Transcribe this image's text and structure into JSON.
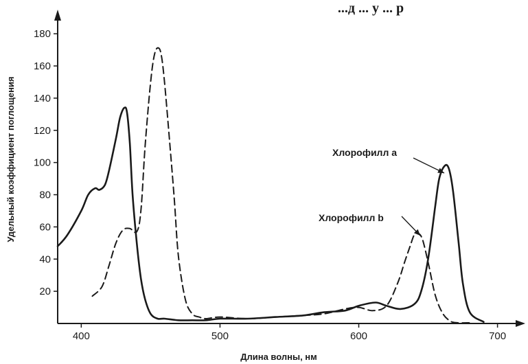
{
  "chart_data": {
    "type": "line",
    "title": "...д ... у ... р",
    "xlabel": "Длина волны, нм",
    "ylabel": "Удельный коэффициент поглощения",
    "xlim": [
      383,
      720
    ],
    "ylim": [
      0,
      195
    ],
    "x_ticks": [
      400,
      500,
      600,
      700
    ],
    "y_ticks": [
      20,
      40,
      60,
      80,
      100,
      120,
      140,
      160,
      180
    ],
    "grid": false,
    "legend": "none",
    "colors": {
      "line": "#1a1a1a"
    },
    "series": [
      {
        "name": "Хлорофилл a",
        "style": "solid",
        "x": [
          383,
          390,
          400,
          405,
          410,
          413,
          417,
          420,
          425,
          428,
          431,
          433,
          435,
          437,
          440,
          443,
          446,
          450,
          455,
          460,
          470,
          480,
          490,
          500,
          520,
          540,
          560,
          575,
          590,
          600,
          612,
          620,
          630,
          640,
          645,
          650,
          655,
          658,
          662,
          665,
          668,
          672,
          675,
          680,
          690
        ],
        "y": [
          48,
          55,
          70,
          80,
          84,
          83,
          86,
          95,
          115,
          128,
          134,
          131,
          112,
          80,
          50,
          28,
          15,
          6,
          3,
          3,
          2,
          2,
          2,
          3,
          3,
          4,
          5,
          7,
          8,
          11,
          13,
          11,
          9,
          12,
          20,
          40,
          72,
          90,
          98,
          96,
          82,
          50,
          25,
          7,
          1
        ]
      },
      {
        "name": "Хлорофилл b",
        "style": "dashed",
        "x": [
          408,
          415,
          420,
          425,
          430,
          435,
          440,
          443,
          446,
          450,
          453,
          456,
          458,
          460,
          463,
          467,
          470,
          475,
          480,
          485,
          490,
          500,
          520,
          540,
          560,
          575,
          590,
          600,
          610,
          620,
          628,
          633,
          637,
          640,
          643,
          646,
          650,
          655,
          660,
          665,
          670,
          680
        ],
        "y": [
          17,
          23,
          36,
          50,
          58,
          59,
          57,
          70,
          110,
          150,
          168,
          171,
          165,
          150,
          120,
          78,
          42,
          15,
          6,
          4,
          3,
          4,
          3,
          4,
          5,
          6,
          9,
          10,
          8,
          11,
          25,
          38,
          48,
          55,
          56,
          52,
          38,
          18,
          7,
          2,
          0.5,
          0
        ]
      }
    ],
    "annotations": [
      "Хлорофилл a",
      "Хлорофилл b"
    ]
  }
}
